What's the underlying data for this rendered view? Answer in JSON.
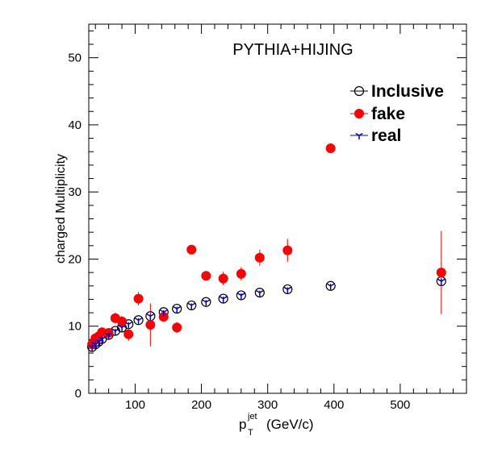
{
  "chart_data": {
    "type": "scatter",
    "title": "",
    "annotation": "PYTHIA+HIJING",
    "xlabel_main": "p",
    "xlabel_sup": "jet",
    "xlabel_sub": "T",
    "xlabel_unit": "(GeV/c)",
    "ylabel": "charged Multiplicity",
    "xlim": [
      30,
      600
    ],
    "ylim": [
      0,
      55
    ],
    "x_ticks": [
      100,
      200,
      300,
      400,
      500
    ],
    "x_tick_labels": [
      "100",
      "200",
      "300",
      "400",
      "500"
    ],
    "y_ticks": [
      0,
      10,
      20,
      30,
      40,
      50
    ],
    "y_tick_labels": [
      "0",
      "10",
      "20",
      "30",
      "40",
      "50"
    ],
    "grid": false,
    "legend_position": "top-right",
    "series": [
      {
        "name": "Inclusive",
        "marker": "open-circle",
        "color": "#000000",
        "points": [
          {
            "x": 35,
            "y": 6.9,
            "err": 0.6
          },
          {
            "x": 40,
            "y": 7.3,
            "err": 0.4
          },
          {
            "x": 45,
            "y": 7.7,
            "err": 0.3
          },
          {
            "x": 50,
            "y": 8.1,
            "err": 0.3
          },
          {
            "x": 60,
            "y": 8.7,
            "err": 0.3
          },
          {
            "x": 70,
            "y": 9.3,
            "err": 0.3
          },
          {
            "x": 80,
            "y": 9.8,
            "err": 0.3
          },
          {
            "x": 90,
            "y": 10.3,
            "err": 0.3
          },
          {
            "x": 105,
            "y": 10.9,
            "err": 0.3
          },
          {
            "x": 123,
            "y": 11.5,
            "err": 0.3
          },
          {
            "x": 143,
            "y": 12.1,
            "err": 0.3
          },
          {
            "x": 163,
            "y": 12.6,
            "err": 0.3
          },
          {
            "x": 185,
            "y": 13.1,
            "err": 0.3
          },
          {
            "x": 207,
            "y": 13.6,
            "err": 0.3
          },
          {
            "x": 233,
            "y": 14.1,
            "err": 0.3
          },
          {
            "x": 260,
            "y": 14.6,
            "err": 0.3
          },
          {
            "x": 288,
            "y": 15.0,
            "err": 0.3
          },
          {
            "x": 330,
            "y": 15.5,
            "err": 0.3
          },
          {
            "x": 395,
            "y": 16.0,
            "err": 0.3
          },
          {
            "x": 562,
            "y": 16.7,
            "err": 0.4
          }
        ]
      },
      {
        "name": "fake",
        "marker": "filled-circle",
        "color": "#ff0000",
        "points": [
          {
            "x": 35,
            "y": 7.3,
            "err": 0.5
          },
          {
            "x": 40,
            "y": 8.2,
            "err": 0.5
          },
          {
            "x": 45,
            "y": 8.5,
            "err": 0.6
          },
          {
            "x": 50,
            "y": 9.1,
            "err": 0.6
          },
          {
            "x": 60,
            "y": 9.0,
            "err": 0.7
          },
          {
            "x": 70,
            "y": 11.2,
            "err": 0.8
          },
          {
            "x": 80,
            "y": 10.7,
            "err": 0.8
          },
          {
            "x": 90,
            "y": 8.8,
            "err": 1.0
          },
          {
            "x": 105,
            "y": 14.1,
            "err": 1.0
          },
          {
            "x": 123,
            "y": 10.2,
            "err": 3.2
          },
          {
            "x": 143,
            "y": 11.4,
            "err": 0.6
          },
          {
            "x": 163,
            "y": 9.8,
            "err": 0.8
          },
          {
            "x": 185,
            "y": 21.4,
            "err": 0.5
          },
          {
            "x": 207,
            "y": 17.5,
            "err": 0.6
          },
          {
            "x": 233,
            "y": 17.1,
            "err": 1.0
          },
          {
            "x": 260,
            "y": 17.8,
            "err": 1.0
          },
          {
            "x": 288,
            "y": 20.2,
            "err": 1.2
          },
          {
            "x": 330,
            "y": 21.3,
            "err": 1.7
          },
          {
            "x": 395,
            "y": 36.5,
            "err": 0.3
          },
          {
            "x": 562,
            "y": 18.0,
            "err": 6.2
          }
        ]
      },
      {
        "name": "real",
        "marker": "tri-star",
        "color": "#0000cc",
        "points": [
          {
            "x": 35,
            "y": 6.9,
            "err": 0.5
          },
          {
            "x": 40,
            "y": 7.3,
            "err": 0.4
          },
          {
            "x": 45,
            "y": 7.7,
            "err": 0.3
          },
          {
            "x": 50,
            "y": 8.1,
            "err": 0.3
          },
          {
            "x": 60,
            "y": 8.7,
            "err": 0.3
          },
          {
            "x": 70,
            "y": 9.3,
            "err": 0.3
          },
          {
            "x": 80,
            "y": 9.8,
            "err": 0.3
          },
          {
            "x": 90,
            "y": 10.3,
            "err": 0.3
          },
          {
            "x": 105,
            "y": 10.9,
            "err": 0.3
          },
          {
            "x": 123,
            "y": 11.5,
            "err": 0.3
          },
          {
            "x": 143,
            "y": 12.1,
            "err": 0.3
          },
          {
            "x": 163,
            "y": 12.6,
            "err": 0.3
          },
          {
            "x": 185,
            "y": 13.1,
            "err": 0.3
          },
          {
            "x": 207,
            "y": 13.6,
            "err": 0.3
          },
          {
            "x": 233,
            "y": 14.1,
            "err": 0.3
          },
          {
            "x": 260,
            "y": 14.6,
            "err": 0.3
          },
          {
            "x": 288,
            "y": 15.0,
            "err": 0.3
          },
          {
            "x": 330,
            "y": 15.5,
            "err": 0.3
          },
          {
            "x": 395,
            "y": 16.0,
            "err": 0.3
          },
          {
            "x": 562,
            "y": 16.7,
            "err": 0.4
          }
        ]
      }
    ]
  }
}
